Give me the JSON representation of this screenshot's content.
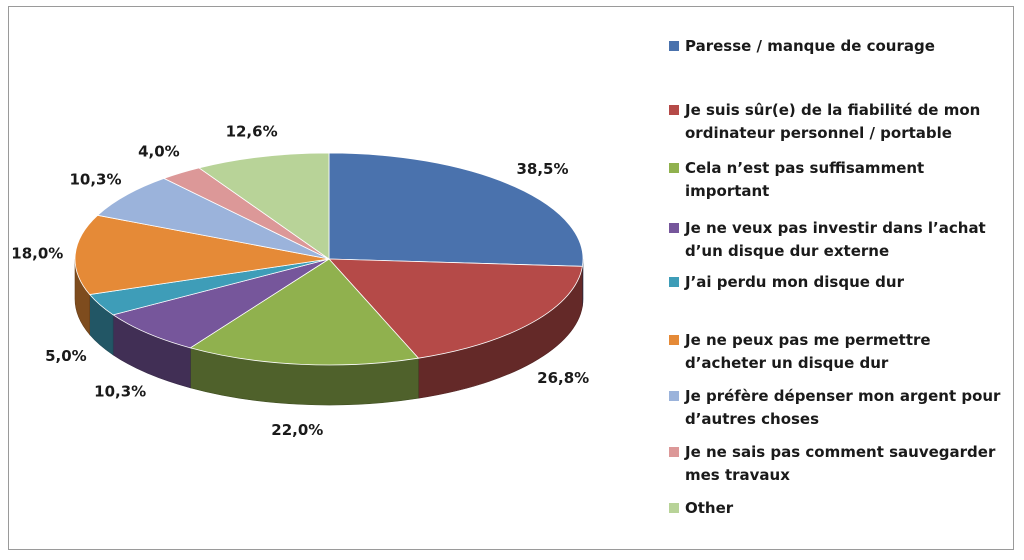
{
  "chart_data": {
    "type": "pie",
    "title": "",
    "slices": [
      {
        "label": "Paresse / manque de courage",
        "value": 38.5,
        "value_label": "38,5%",
        "color": "#4a72ad"
      },
      {
        "label": "Je suis sûr(e) de la fiabilité de mon ordinateur personnel / portable",
        "value": 26.8,
        "value_label": "26,8%",
        "color": "#b54a48"
      },
      {
        "label": "Cela n’est pas suffisamment important",
        "value": 22.0,
        "value_label": "22,0%",
        "color": "#90b14e"
      },
      {
        "label": "Je ne veux pas investir dans l’achat d’un disque dur externe",
        "value": 10.3,
        "value_label": "10,3%",
        "color": "#76569b"
      },
      {
        "label": "J’ai perdu mon disque dur",
        "value": 5.0,
        "value_label": "5,0%",
        "color": "#3e9db8"
      },
      {
        "label": "Je ne peux pas me permettre d’acheter un disque dur",
        "value": 18.0,
        "value_label": "18,0%",
        "color": "#e58a37"
      },
      {
        "label": "Je préfère dépenser mon argent pour d’autres choses",
        "value": 10.3,
        "value_label": "10,3%",
        "color": "#9bb3db"
      },
      {
        "label": "Je ne sais pas comment sauvegarder mes travaux",
        "value": 4.0,
        "value_label": "4,0%",
        "color": "#dc9898"
      },
      {
        "label": "Other",
        "value": 12.6,
        "value_label": "12,6%",
        "color": "#b8d398"
      }
    ],
    "legend_position": "right"
  }
}
